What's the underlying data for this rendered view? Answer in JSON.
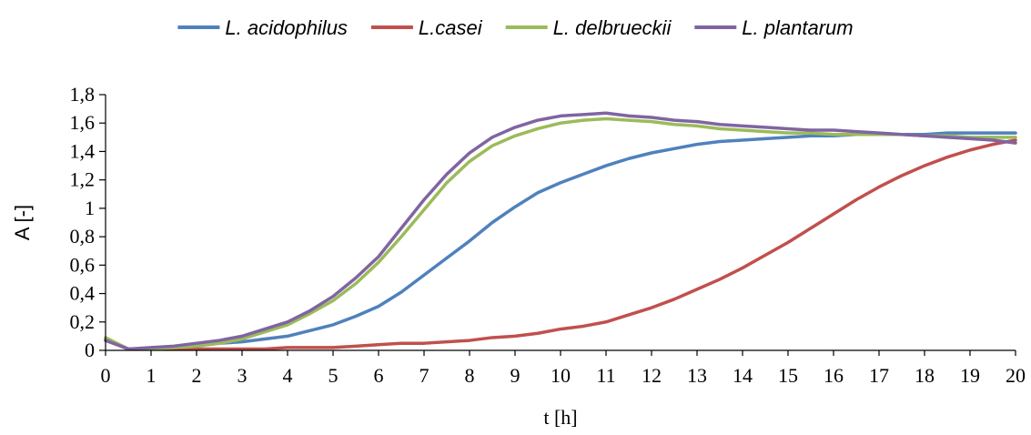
{
  "chart_data": {
    "type": "line",
    "xlabel": "t [h]",
    "ylabel": "A [-]",
    "xlim": [
      0,
      20
    ],
    "ylim": [
      0,
      1.8
    ],
    "x_ticks": [
      "0",
      "1",
      "2",
      "3",
      "4",
      "5",
      "6",
      "7",
      "8",
      "9",
      "10",
      "11",
      "12",
      "13",
      "14",
      "15",
      "16",
      "17",
      "18",
      "19",
      "20"
    ],
    "y_ticks": [
      "0",
      "0,2",
      "0,4",
      "0,6",
      "0,8",
      "1",
      "1,2",
      "1,4",
      "1,6",
      "1,8"
    ],
    "grid": false,
    "legend_position": "top",
    "x": [
      0,
      0.5,
      1,
      1.5,
      2,
      2.5,
      3,
      3.5,
      4,
      4.5,
      5,
      5.5,
      6,
      6.5,
      7,
      7.5,
      8,
      8.5,
      9,
      9.5,
      10,
      10.5,
      11,
      11.5,
      12,
      12.5,
      13,
      13.5,
      14,
      14.5,
      15,
      15.5,
      16,
      16.5,
      17,
      17.5,
      18,
      18.5,
      19,
      19.5,
      20
    ],
    "series": [
      {
        "name": "L. acidophilus",
        "color": "#4f81bd",
        "values": [
          0.08,
          0.01,
          0.01,
          0.02,
          0.03,
          0.05,
          0.06,
          0.08,
          0.1,
          0.14,
          0.18,
          0.24,
          0.31,
          0.41,
          0.53,
          0.65,
          0.77,
          0.9,
          1.01,
          1.11,
          1.18,
          1.24,
          1.3,
          1.35,
          1.39,
          1.42,
          1.45,
          1.47,
          1.48,
          1.49,
          1.5,
          1.51,
          1.51,
          1.52,
          1.52,
          1.52,
          1.52,
          1.53,
          1.53,
          1.53,
          1.53
        ]
      },
      {
        "name": "L.casei",
        "color": "#c0504d",
        "values": [
          0.07,
          0.01,
          0.01,
          0.01,
          0.01,
          0.01,
          0.01,
          0.01,
          0.02,
          0.02,
          0.02,
          0.03,
          0.04,
          0.05,
          0.05,
          0.06,
          0.07,
          0.09,
          0.1,
          0.12,
          0.15,
          0.17,
          0.2,
          0.25,
          0.3,
          0.36,
          0.43,
          0.5,
          0.58,
          0.67,
          0.76,
          0.86,
          0.96,
          1.06,
          1.15,
          1.23,
          1.3,
          1.36,
          1.41,
          1.45,
          1.48
        ]
      },
      {
        "name": "L. delbrueckii",
        "color": "#9bbb59",
        "values": [
          0.09,
          0.01,
          0.01,
          0.02,
          0.03,
          0.05,
          0.08,
          0.13,
          0.18,
          0.26,
          0.35,
          0.47,
          0.62,
          0.8,
          0.99,
          1.18,
          1.33,
          1.44,
          1.51,
          1.56,
          1.6,
          1.62,
          1.63,
          1.62,
          1.61,
          1.59,
          1.58,
          1.56,
          1.55,
          1.54,
          1.53,
          1.53,
          1.52,
          1.52,
          1.52,
          1.52,
          1.51,
          1.51,
          1.5,
          1.5,
          1.5
        ]
      },
      {
        "name": "L. plantarum",
        "color": "#8064a2",
        "values": [
          0.07,
          0.01,
          0.02,
          0.03,
          0.05,
          0.07,
          0.1,
          0.15,
          0.2,
          0.28,
          0.38,
          0.51,
          0.66,
          0.86,
          1.06,
          1.24,
          1.39,
          1.5,
          1.57,
          1.62,
          1.65,
          1.66,
          1.67,
          1.65,
          1.64,
          1.62,
          1.61,
          1.59,
          1.58,
          1.57,
          1.56,
          1.55,
          1.55,
          1.54,
          1.53,
          1.52,
          1.51,
          1.5,
          1.49,
          1.48,
          1.46
        ]
      }
    ]
  }
}
